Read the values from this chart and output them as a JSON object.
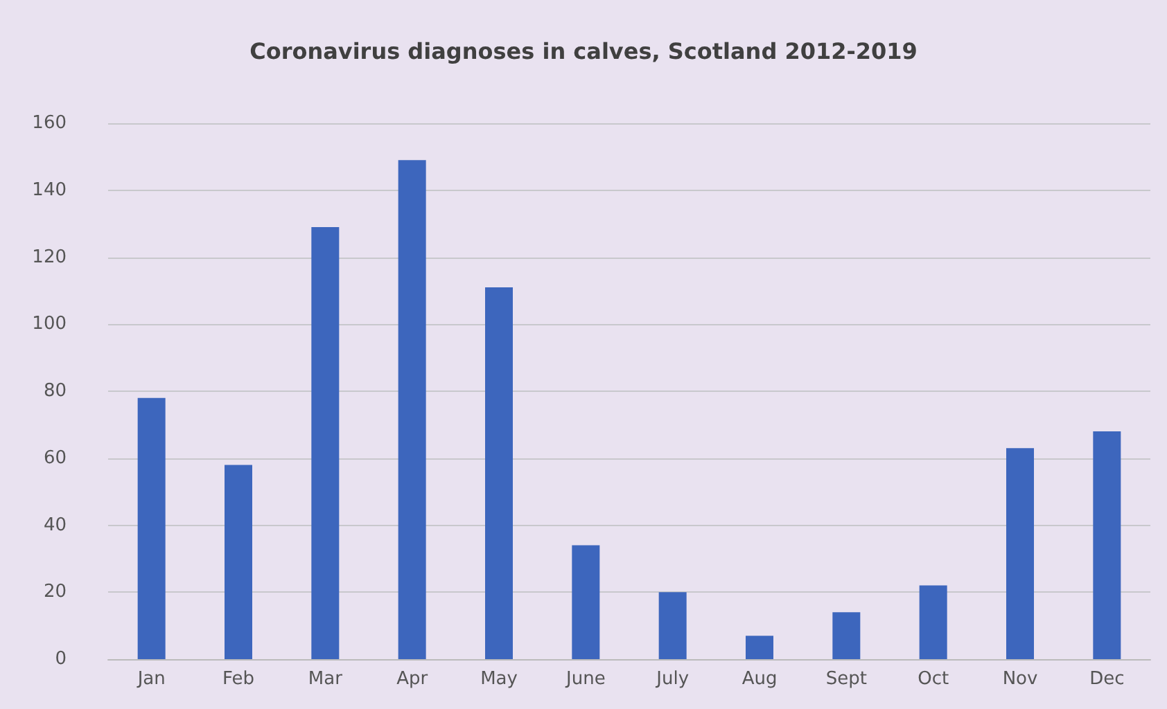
{
  "chart_data": {
    "type": "bar",
    "title": "Coronavirus diagnoses in calves, Scotland 2012-2019",
    "categories": [
      "Jan",
      "Feb",
      "Mar",
      "Apr",
      "May",
      "June",
      "July",
      "Aug",
      "Sept",
      "Oct",
      "Nov",
      "Dec"
    ],
    "values": [
      78,
      58,
      129,
      149,
      111,
      34,
      20,
      7,
      14,
      22,
      63,
      68
    ],
    "color": "#3d66bd",
    "ylim": [
      0,
      160
    ],
    "yticks": [
      0,
      20,
      40,
      60,
      80,
      100,
      120,
      140,
      160
    ],
    "grid": "y"
  }
}
